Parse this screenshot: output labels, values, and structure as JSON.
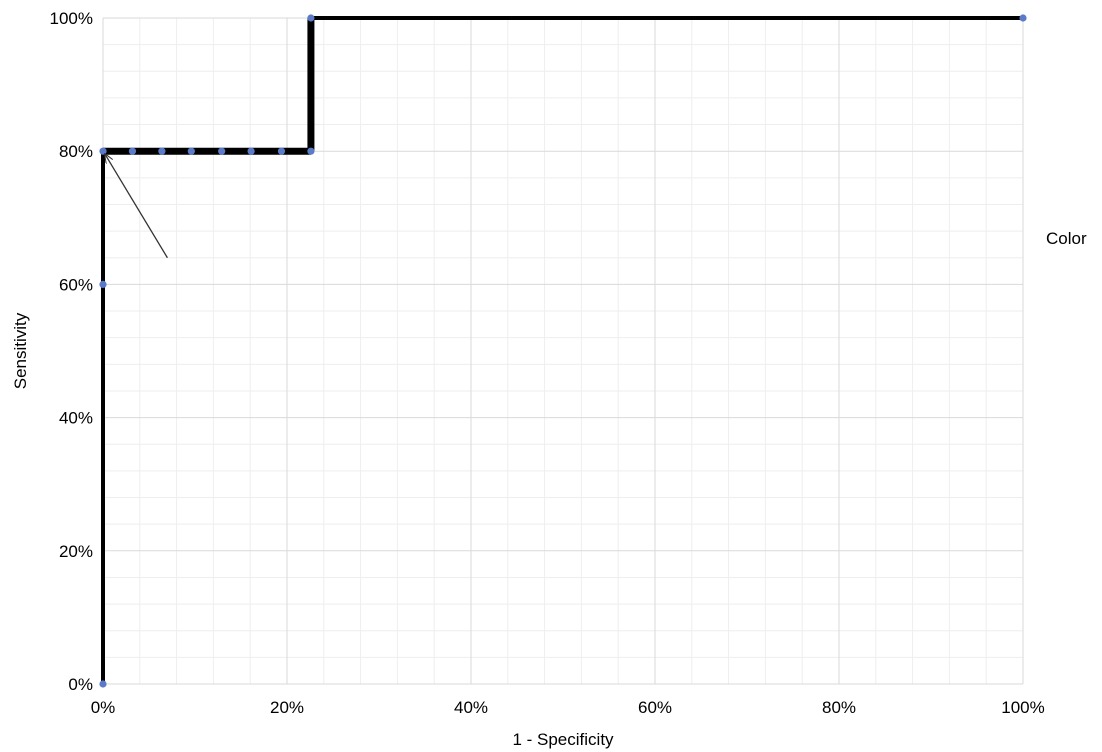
{
  "chart_data": {
    "type": "line",
    "title": "",
    "xlabel": "1 - Specificity",
    "ylabel": "Sensitivity",
    "xlim": [
      0,
      100
    ],
    "ylim": [
      0,
      100
    ],
    "x_ticks": [
      "0%",
      "20%",
      "40%",
      "60%",
      "80%",
      "100%"
    ],
    "y_ticks": [
      "0%",
      "20%",
      "40%",
      "60%",
      "80%",
      "100%"
    ],
    "grid": true,
    "legend_title": "Color",
    "legend_placement": "right",
    "step_line_color": "#000000",
    "point_color": "#5b7bc9",
    "step_line": [
      {
        "x": 0,
        "y": 0
      },
      {
        "x": 0,
        "y": 80
      },
      {
        "x": 22.6,
        "y": 80
      },
      {
        "x": 22.6,
        "y": 100
      },
      {
        "x": 100,
        "y": 100
      }
    ],
    "points": [
      {
        "x": 0,
        "y": 0
      },
      {
        "x": 0,
        "y": 60
      },
      {
        "x": 0,
        "y": 80
      },
      {
        "x": 3.2,
        "y": 80
      },
      {
        "x": 6.4,
        "y": 80
      },
      {
        "x": 9.6,
        "y": 80
      },
      {
        "x": 12.9,
        "y": 80
      },
      {
        "x": 16.1,
        "y": 80
      },
      {
        "x": 19.4,
        "y": 80
      },
      {
        "x": 22.6,
        "y": 80
      },
      {
        "x": 22.6,
        "y": 100
      },
      {
        "x": 100,
        "y": 100
      }
    ],
    "annotation_arrow": {
      "from": {
        "x": 7,
        "y": 64
      },
      "to": {
        "x": 0,
        "y": 80
      }
    }
  }
}
